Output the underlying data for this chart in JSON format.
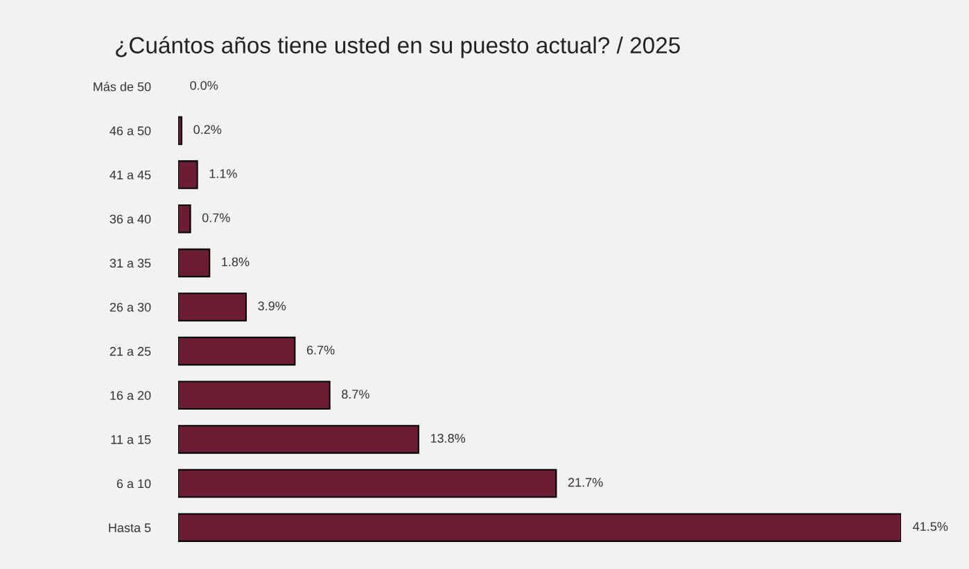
{
  "chart_data": {
    "type": "bar",
    "orientation": "horizontal",
    "title": "¿Cuántos años tiene usted en su puesto actual? / 2025",
    "categories": [
      "Más de 50",
      "46 a 50",
      "41 a 45",
      "36 a 40",
      "31 a 35",
      "26 a 30",
      "21 a 25",
      "16 a 20",
      "11 a 15",
      "6 a 10",
      "Hasta 5"
    ],
    "values": [
      0.0,
      0.2,
      1.1,
      0.7,
      1.8,
      3.9,
      6.7,
      8.7,
      13.8,
      21.7,
      41.5
    ],
    "value_labels": [
      "0.0%",
      "0.2%",
      "1.1%",
      "0.7%",
      "1.8%",
      "3.9%",
      "6.7%",
      "8.7%",
      "13.8%",
      "21.7%",
      "41.5%"
    ],
    "color": "#6b1d33",
    "tick_labels": "y",
    "grid": false,
    "legend": false
  }
}
